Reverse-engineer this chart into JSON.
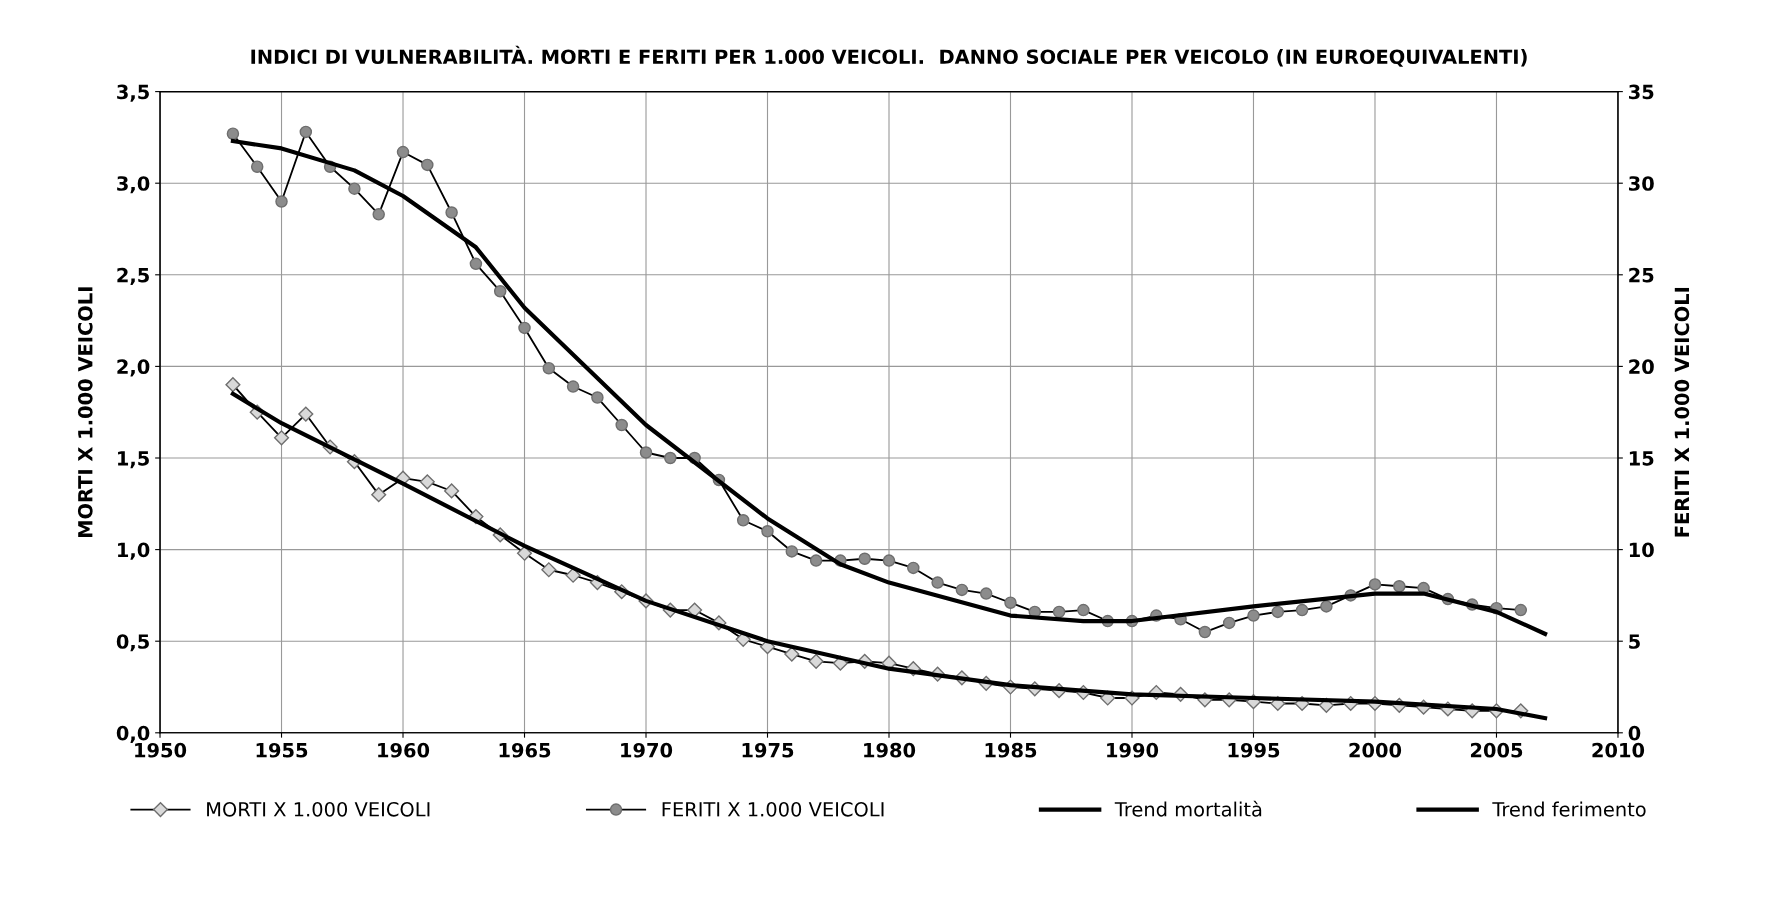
{
  "chart_data": {
    "type": "line",
    "title": "INDICI DI VULNERABILITÀ. MORTI E FERITI PER 1.000 VEICOLI.  DANNO SOCIALE PER VEICOLO (IN EUROEQUIVALENTI)",
    "ylabel": "MORTI X 1.000 VEICOLI",
    "y2label": "FERITI X 1.000 VEICOLI",
    "x": [
      1953,
      1954,
      1955,
      1956,
      1957,
      1958,
      1959,
      1960,
      1961,
      1962,
      1963,
      1964,
      1965,
      1966,
      1967,
      1968,
      1969,
      1970,
      1971,
      1972,
      1973,
      1974,
      1975,
      1976,
      1977,
      1978,
      1979,
      1980,
      1981,
      1982,
      1983,
      1984,
      1985,
      1986,
      1987,
      1988,
      1989,
      1990,
      1991,
      1992,
      1993,
      1994,
      1995,
      1996,
      1997,
      1998,
      1999,
      2000,
      2001,
      2002,
      2003,
      2004,
      2005,
      2006
    ],
    "series": [
      {
        "name": "MORTI X 1.000 VEICOLI",
        "color": "#d9d9d9",
        "marker": "diamond",
        "values": [
          1.9,
          1.75,
          1.61,
          1.74,
          1.56,
          1.48,
          1.3,
          1.39,
          1.37,
          1.32,
          1.18,
          1.08,
          0.98,
          0.89,
          0.86,
          0.82,
          0.77,
          0.72,
          0.67,
          0.67,
          0.6,
          0.51,
          0.47,
          0.43,
          0.39,
          0.38,
          0.39,
          0.38,
          0.35,
          0.32,
          0.3,
          0.27,
          0.25,
          0.24,
          0.23,
          0.22,
          0.19,
          0.19,
          0.22,
          0.21,
          0.18,
          0.18,
          0.17,
          0.16,
          0.16,
          0.15,
          0.16,
          0.16,
          0.15,
          0.14,
          0.13,
          0.12,
          0.12,
          0.12
        ]
      },
      {
        "name": "FERITI X 1.000 VEICOLI",
        "color": "#8c8c8c",
        "marker": "circle",
        "axis": "y2",
        "values": [
          32.7,
          30.9,
          29.0,
          32.8,
          30.9,
          29.7,
          28.3,
          31.7,
          31.0,
          28.4,
          25.6,
          24.1,
          22.1,
          19.9,
          18.9,
          18.3,
          16.8,
          15.3,
          15.0,
          15.0,
          13.8,
          11.6,
          11.0,
          9.9,
          9.4,
          9.4,
          9.5,
          9.4,
          9.0,
          8.2,
          7.8,
          7.6,
          7.1,
          6.6,
          6.6,
          6.7,
          6.1,
          6.1,
          6.4,
          6.2,
          5.5,
          6.0,
          6.4,
          6.6,
          6.7,
          6.9,
          7.5,
          8.1,
          8.0,
          7.9,
          7.3,
          7.0,
          6.8,
          6.7
        ]
      },
      {
        "name": "Trend mortalità",
        "color": "#000000",
        "marker": "none",
        "x": [
          1953,
          1955,
          1960,
          1965,
          1970,
          1975,
          1980,
          1985,
          1990,
          1995,
          2000,
          2005,
          2007
        ],
        "values": [
          1.85,
          1.69,
          1.36,
          1.02,
          0.72,
          0.5,
          0.35,
          0.26,
          0.21,
          0.19,
          0.17,
          0.13,
          0.08
        ]
      },
      {
        "name": "Trend ferimento",
        "color": "#000000",
        "marker": "none",
        "axis": "y2",
        "x": [
          1953,
          1955,
          1958,
          1960,
          1963,
          1965,
          1970,
          1975,
          1978,
          1980,
          1985,
          1988,
          1990,
          1995,
          2000,
          2002,
          2005,
          2007
        ],
        "values": [
          32.3,
          31.9,
          30.7,
          29.3,
          26.5,
          23.2,
          16.8,
          11.7,
          9.2,
          8.2,
          6.4,
          6.1,
          6.1,
          6.9,
          7.6,
          7.6,
          6.6,
          5.4
        ]
      }
    ],
    "xlim": [
      1950,
      2010
    ],
    "xticks": [
      1950,
      1955,
      1960,
      1965,
      1970,
      1975,
      1980,
      1985,
      1990,
      1995,
      2000,
      2005,
      2010
    ],
    "ylim": [
      0,
      3.5
    ],
    "yticks": [
      {
        "value": 0,
        "label": "0,0"
      },
      {
        "value": 0.5,
        "label": "0,5"
      },
      {
        "value": 1,
        "label": "1,0"
      },
      {
        "value": 1.5,
        "label": "1,5"
      },
      {
        "value": 2,
        "label": "2,0"
      },
      {
        "value": 2.5,
        "label": "2,5"
      },
      {
        "value": 3,
        "label": "3,0"
      },
      {
        "value": 3.5,
        "label": "3,5"
      }
    ],
    "y2lim": [
      0,
      35
    ],
    "y2ticks": [
      0,
      5,
      10,
      15,
      20,
      25,
      30,
      35
    ],
    "grid": true,
    "legend": "bottom",
    "line_style": "solid"
  }
}
